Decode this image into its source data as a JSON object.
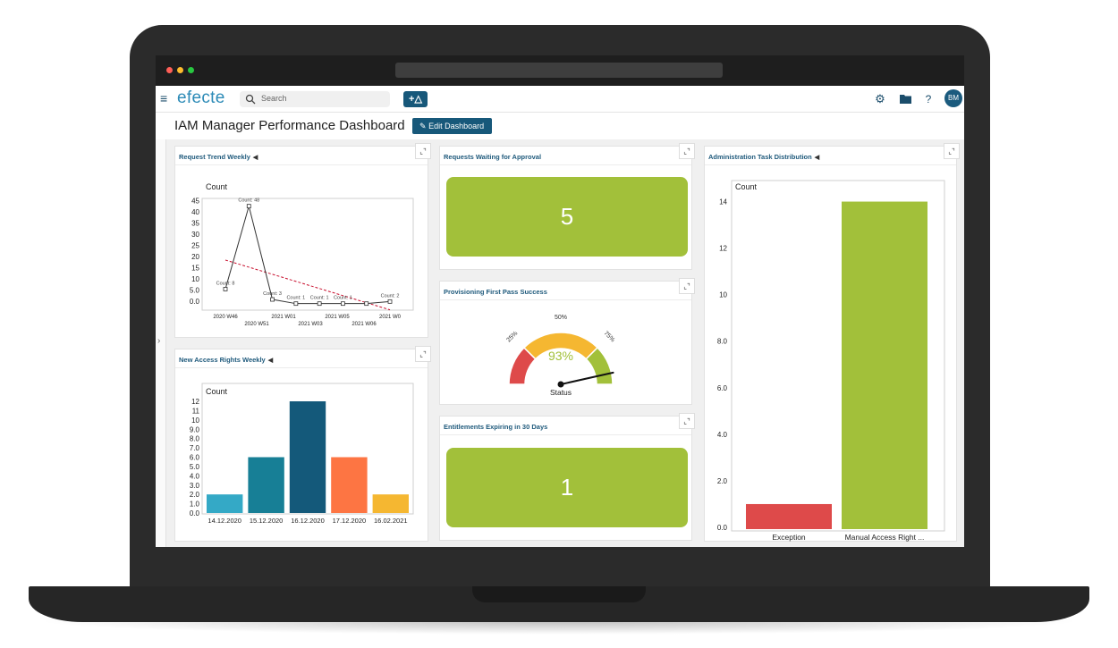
{
  "app": {
    "brand": "efecte",
    "search_placeholder": "Search",
    "add_label": "+△",
    "avatar_initials": "BM",
    "page_title": "IAM Manager Performance Dashboard",
    "edit_dashboard_label": "Edit Dashboard",
    "icons": [
      "menu-icon",
      "search-icon",
      "gear-icon",
      "folder-icon",
      "help-icon",
      "pencil-icon",
      "expand-icon",
      "chevron-right-icon"
    ]
  },
  "colors": {
    "primary": "#17587a",
    "brand": "#2d8bb7",
    "kpi_green": "#a2c03a",
    "gauge_red": "#de4a4a",
    "gauge_yellow": "#f5b731",
    "gauge_green": "#a2c03a"
  },
  "panels": {
    "request_trend": {
      "title": "Request Trend Weekly"
    },
    "waiting_approval": {
      "title": "Requests Waiting for Approval",
      "value": "5"
    },
    "first_pass": {
      "title": "Provisioning First Pass Success",
      "value_label": "93%",
      "value": 93,
      "status_label": "Status",
      "ticks": [
        "25%",
        "50%",
        "75%"
      ]
    },
    "expiring": {
      "title": "Entitlements Expiring in 30 Days",
      "value": "1"
    },
    "new_access": {
      "title": "New Access Rights Weekly"
    },
    "admin_tasks": {
      "title": "Administration Task Distribution"
    }
  },
  "chart_data": [
    {
      "id": "request-trend",
      "type": "line",
      "ylabel": "Count",
      "y_ticks": [
        "0.0",
        "5.0",
        "10",
        "15",
        "20",
        "25",
        "30",
        "35",
        "40",
        "45"
      ],
      "ylim": [
        0,
        50
      ],
      "x_tick_labels": [
        "2020 W46",
        "2020 W51",
        "2021 W01",
        "2021 W03",
        "2021 W05",
        "2021 W06",
        "2021 W0"
      ],
      "points": [
        {
          "x": 0,
          "y": 8,
          "label": "Count: 8"
        },
        {
          "x": 1,
          "y": 48,
          "label": "Count: 48"
        },
        {
          "x": 2,
          "y": 3,
          "label": "Count: 3"
        },
        {
          "x": 3,
          "y": 1,
          "label": "Count: 1"
        },
        {
          "x": 4,
          "y": 1,
          "label": "Count: 1"
        },
        {
          "x": 5,
          "y": 1,
          "label": "Count: 1"
        },
        {
          "x": 6,
          "y": 1,
          "label": ""
        },
        {
          "x": 7,
          "y": 2,
          "label": "Count: 2"
        }
      ],
      "trendline": {
        "start": 22,
        "end": -2,
        "color": "#c8102e",
        "style": "dashed"
      }
    },
    {
      "id": "new-access-rights",
      "type": "bar",
      "ylabel": "Count",
      "y_ticks": [
        "0.0",
        "1.0",
        "2.0",
        "3.0",
        "4.0",
        "5.0",
        "6.0",
        "7.0",
        "8.0",
        "9.0",
        "10",
        "11",
        "12"
      ],
      "ylim": [
        0,
        12
      ],
      "categories": [
        "14.12.2020",
        "15.12.2020",
        "16.12.2020",
        "17.12.2020",
        "16.02.2021"
      ],
      "values": [
        2,
        6,
        12,
        6,
        2
      ],
      "colors": [
        "#34a9c6",
        "#177f96",
        "#14597a",
        "#fd7543",
        "#f5b731"
      ]
    },
    {
      "id": "admin-task-distribution",
      "type": "bar",
      "ylabel": "Count",
      "y_ticks": [
        "0.0",
        "2.0",
        "4.0",
        "6.0",
        "8.0",
        "10",
        "12",
        "14"
      ],
      "ylim": [
        0,
        14.8
      ],
      "categories": [
        "Exception",
        "Manual Access Right ..."
      ],
      "values": [
        1,
        14
      ],
      "colors": [
        "#de4a4a",
        "#a2c03a"
      ]
    }
  ]
}
